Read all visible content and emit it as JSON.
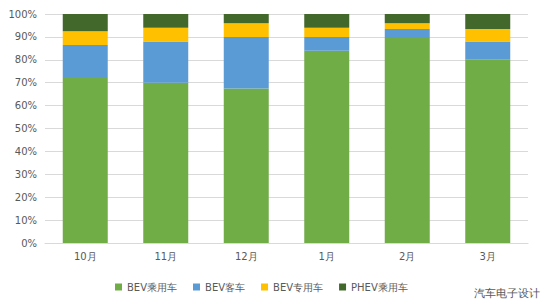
{
  "chart_data": {
    "type": "bar",
    "stacked": true,
    "grid": true,
    "legend": "bottom",
    "categories": [
      "10月",
      "11月",
      "12月",
      "1月",
      "2月",
      "3月"
    ],
    "series": [
      {
        "name": "BEV乘用车",
        "color": "#70ad47",
        "values": [
          72.5,
          70,
          67.5,
          84,
          89.5,
          80
        ]
      },
      {
        "name": "BEV客车",
        "color": "#5b9bd5",
        "values": [
          14,
          18,
          22.5,
          6,
          4,
          8
        ]
      },
      {
        "name": "BEV专用车",
        "color": "#ffc000",
        "values": [
          6,
          6,
          6,
          4,
          2.5,
          5.5
        ]
      },
      {
        "name": "PHEV乘用车",
        "color": "#43682b",
        "values": [
          7.5,
          6,
          4,
          6,
          4,
          6.5
        ]
      }
    ],
    "ylim": [
      0,
      100
    ],
    "yticks": [
      {
        "value": 0,
        "label": "0%"
      },
      {
        "value": 10,
        "label": "10%"
      },
      {
        "value": 20,
        "label": "20%"
      },
      {
        "value": 30,
        "label": "30%"
      },
      {
        "value": 40,
        "label": "40%"
      },
      {
        "value": 50,
        "label": "50%"
      },
      {
        "value": 60,
        "label": "60%"
      },
      {
        "value": 70,
        "label": "70%"
      },
      {
        "value": 80,
        "label": "80%"
      },
      {
        "value": 90,
        "label": "90%"
      },
      {
        "value": 100,
        "label": "100%"
      }
    ],
    "annotations": [
      "汽车电子设计"
    ]
  }
}
